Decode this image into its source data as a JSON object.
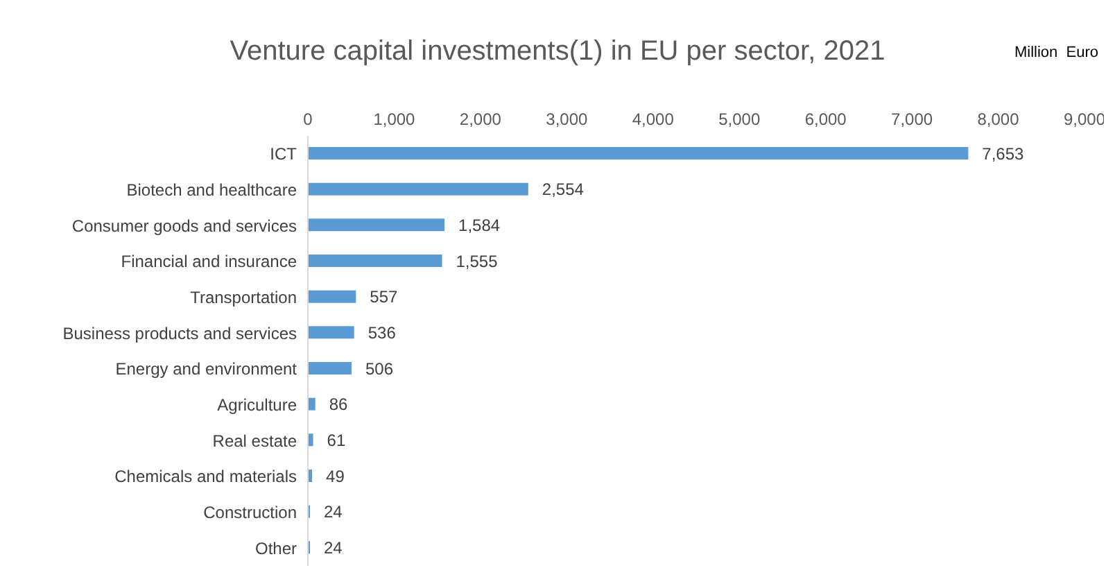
{
  "chart_data": {
    "type": "bar",
    "orientation": "horizontal",
    "title": "Venture capital investments(1) in EU per sector, 2021",
    "annotations": [
      "Million  Euro"
    ],
    "categories": [
      "ICT",
      "Biotech and healthcare",
      "Consumer goods and services",
      "Financial and insurance",
      "Transportation",
      "Business products and services",
      "Energy and environment",
      "Agriculture",
      "Real estate",
      "Chemicals and materials",
      "Construction",
      "Other"
    ],
    "values": [
      7653,
      2554,
      1584,
      1555,
      557,
      536,
      506,
      86,
      61,
      49,
      24,
      24
    ],
    "value_labels": [
      "7,653",
      "2,554",
      "1,584",
      "1,555",
      "557",
      "536",
      "506",
      "86",
      "61",
      "49",
      "24",
      "24"
    ],
    "color": "#5b9bd5",
    "xlim": [
      0,
      9000
    ],
    "xticks": [
      0,
      {
        "value": 1000,
        "label": "1,000"
      },
      {
        "value": 2000,
        "label": "2,000"
      },
      {
        "value": 3000,
        "label": "3,000"
      },
      {
        "value": 4000,
        "label": "4,000"
      },
      {
        "value": 5000,
        "label": "5,000"
      },
      {
        "value": 6000,
        "label": "6,000"
      },
      {
        "value": 7000,
        "label": "7,000"
      },
      {
        "value": 8000,
        "label": "8,000"
      },
      {
        "value": 9000,
        "label": "9,000"
      }
    ],
    "grid": false,
    "legend": false
  }
}
